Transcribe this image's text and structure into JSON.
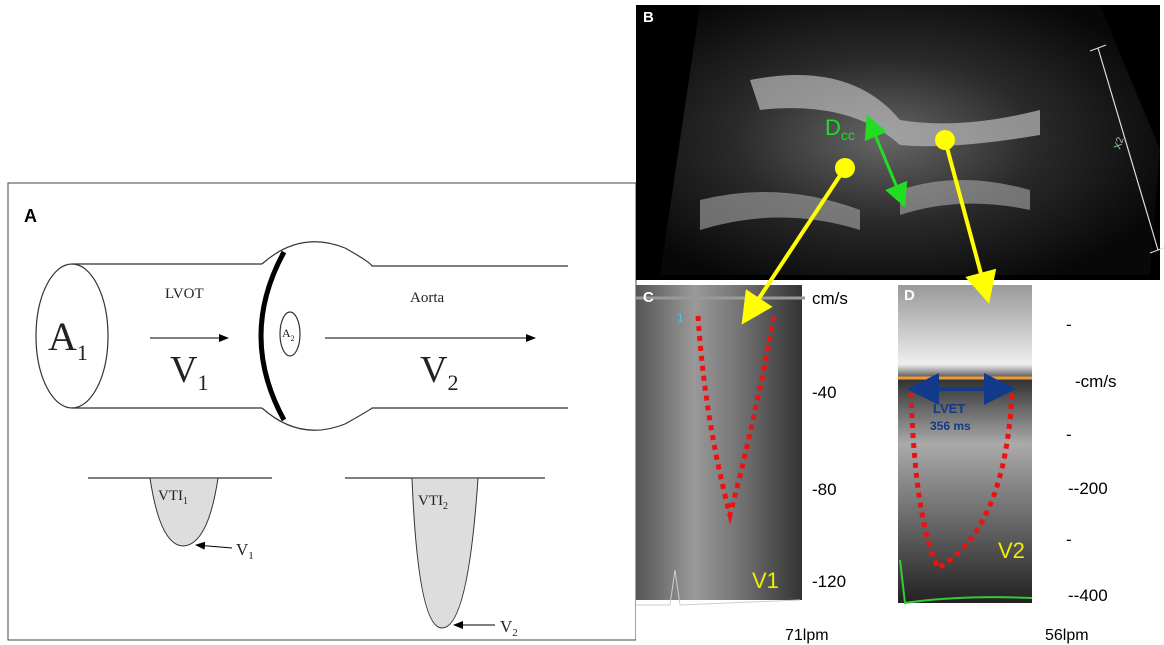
{
  "panel_a": {
    "label": "A",
    "lvot": "LVOT",
    "aorta": "Aorta",
    "a1": {
      "base": "A",
      "sub": "1"
    },
    "a2": {
      "base": "A",
      "sub": "2"
    },
    "v1": {
      "base": "V",
      "sub": "1"
    },
    "v2": {
      "base": "V",
      "sub": "2"
    },
    "vti1": {
      "base": "VTI",
      "sub": "1"
    },
    "vti2": {
      "base": "VTI",
      "sub": "2"
    },
    "v1_tip": {
      "base": "V",
      "sub": "1"
    },
    "v2_tip": {
      "base": "V",
      "sub": "2"
    }
  },
  "panel_b": {
    "label": "B",
    "dcc": {
      "base": "D",
      "sub": "cc"
    },
    "scale": "X2"
  },
  "panel_c": {
    "label": "C",
    "unit": "cm/s",
    "beat": "1",
    "ticks": [
      "-40",
      "-80",
      "-120"
    ],
    "trace": "V1",
    "rate": "71lpm"
  },
  "panel_d": {
    "label": "D",
    "unit": "cm/s",
    "lvet": "LVET",
    "lvet_value": "356 ms",
    "ticks": [
      "-200",
      "-400"
    ],
    "trace": "V2",
    "rate": "56lpm"
  }
}
